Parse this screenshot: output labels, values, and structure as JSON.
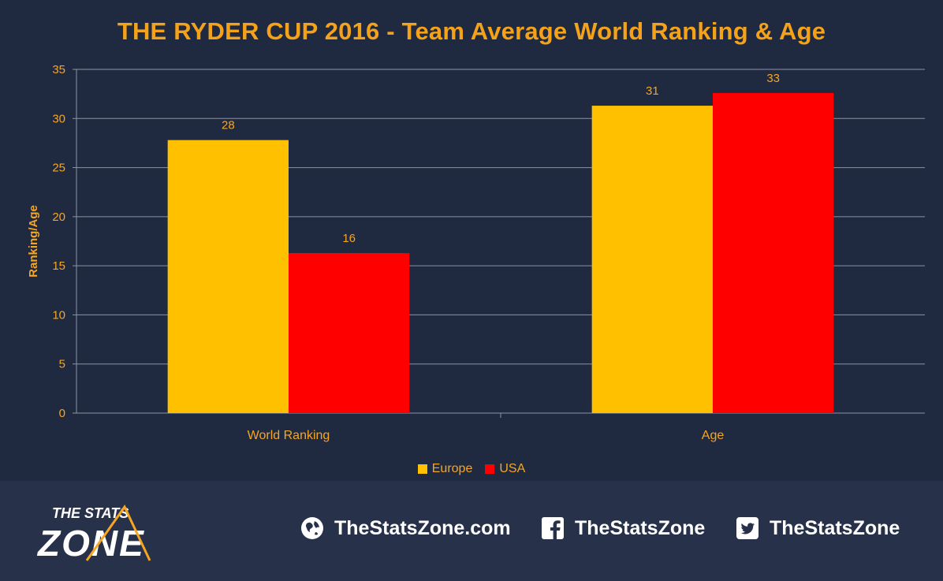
{
  "chart_data": {
    "type": "bar",
    "title": "THE RYDER CUP 2016 - Team Average World Ranking & Age",
    "ylabel": "Ranking/Age",
    "xlabel": "",
    "categories": [
      "World Ranking",
      "Age"
    ],
    "series": [
      {
        "name": "Europe",
        "values": [
          27.8,
          31.3
        ],
        "labels": [
          "28",
          "31"
        ],
        "color": "#ffc000"
      },
      {
        "name": "USA",
        "values": [
          16.3,
          32.6
        ],
        "labels": [
          "16",
          "33"
        ],
        "color": "#ff0000"
      }
    ],
    "ylim": [
      0,
      35
    ],
    "yticks": [
      0,
      5,
      10,
      15,
      20,
      25,
      30,
      35
    ],
    "grid": true,
    "legend_position": "bottom"
  },
  "footer": {
    "logo_line1": "THE STATS",
    "logo_line2": "ZONE",
    "website": "TheStatsZone.com",
    "facebook": "TheStatsZone",
    "twitter": "TheStatsZone"
  },
  "colors": {
    "background": "#1f2940",
    "footer_background": "#28314a",
    "accent": "#f5a623"
  }
}
